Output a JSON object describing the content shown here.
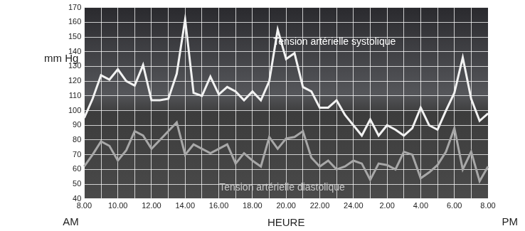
{
  "chart_data": {
    "type": "line",
    "ylabel": "mm Hg",
    "xlabel": "HEURE",
    "annotations": [
      "AM",
      "PM"
    ],
    "categories": [
      "8.00",
      null,
      null,
      null,
      "10.00",
      null,
      null,
      null,
      "12.00",
      null,
      null,
      null,
      "14.00",
      null,
      null,
      null,
      "16.00",
      null,
      null,
      null,
      "18.00",
      null,
      null,
      null,
      "20.00",
      null,
      null,
      null,
      "22.00",
      null,
      null,
      null,
      "24.00",
      null,
      null,
      null,
      "2.00",
      null,
      null,
      null,
      "4.00",
      null,
      null,
      null,
      "6.00",
      null,
      null,
      null,
      "8.00"
    ],
    "series": [
      {
        "name": "Tension artérielle systolique",
        "color": "#f2f2f2",
        "values": [
          95,
          108,
          124,
          121,
          128,
          120,
          117,
          131,
          107,
          107,
          108,
          125,
          162,
          112,
          110,
          123,
          111,
          116,
          113,
          107,
          113,
          107,
          120,
          155,
          135,
          139,
          116,
          113,
          102,
          102,
          107,
          97,
          90,
          83,
          94,
          83,
          90,
          87,
          83,
          88,
          102,
          90,
          87,
          100,
          112,
          136,
          108,
          93,
          98
        ]
      },
      {
        "name": "Tension artérielle diastolique",
        "color": "#a8a8a8",
        "values": [
          62,
          70,
          79,
          76,
          66,
          73,
          86,
          83,
          74,
          80,
          86,
          92,
          70,
          77,
          74,
          71,
          74,
          77,
          64,
          71,
          66,
          62,
          82,
          74,
          81,
          82,
          86,
          68,
          62,
          66,
          60,
          62,
          66,
          64,
          53,
          64,
          63,
          60,
          72,
          70,
          54,
          58,
          63,
          72,
          88,
          60,
          72,
          52,
          62
        ]
      }
    ],
    "ylim": [
      40,
      170
    ],
    "yticks": [
      40,
      50,
      60,
      70,
      80,
      90,
      100,
      110,
      120,
      130,
      140,
      150,
      160,
      170
    ],
    "grid": true
  }
}
